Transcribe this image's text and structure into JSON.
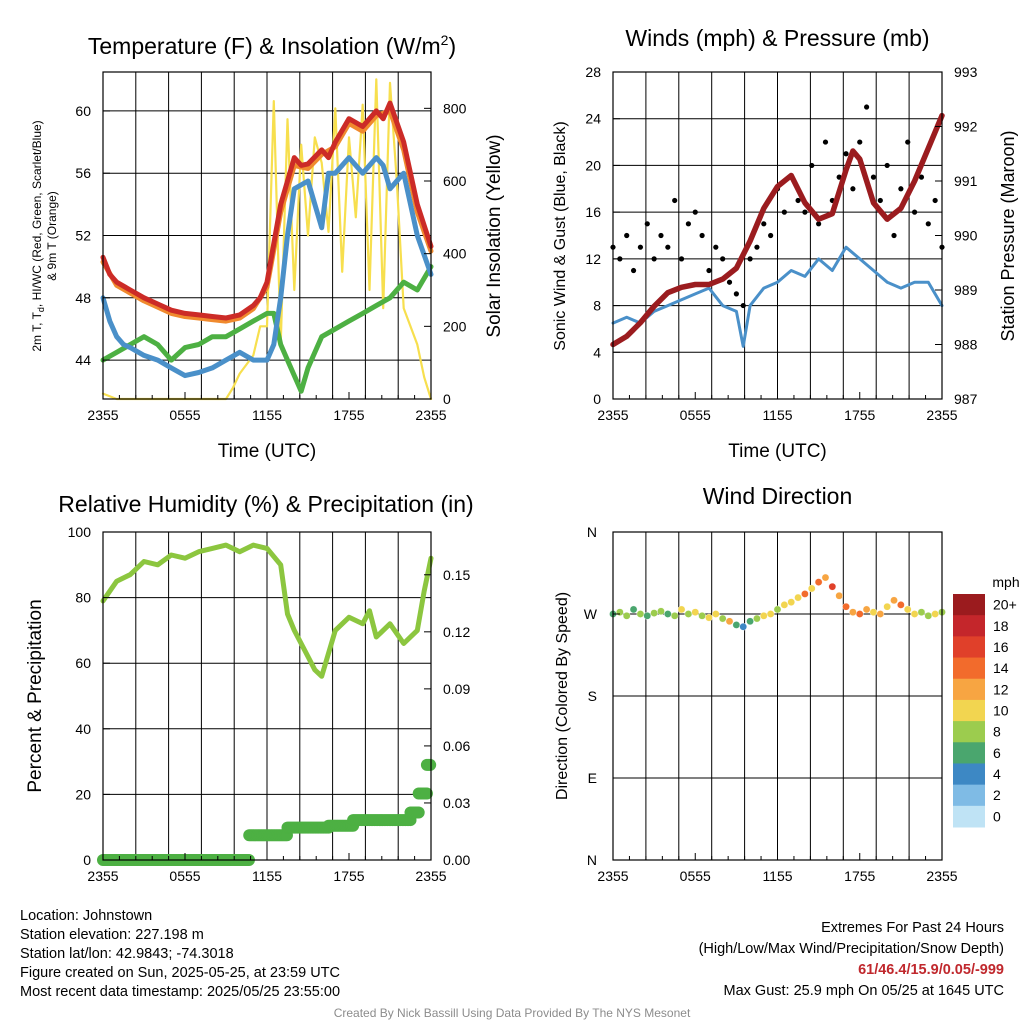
{
  "panels": {
    "temp": {
      "title": "Temperature (F) & Insolation (W/m²)",
      "ylabel_left": "2m T, Td, HI/WC (Red, Green, Scarlet/Blue) & 9m T (Orange)",
      "ylabel_left_line1": "2m T, T",
      "ylabel_left_sub": "d",
      "ylabel_left_line1b": ", HI/WC (Red, Green, Scarlet/Blue)",
      "ylabel_left_line2": "& 9m T (Orange)",
      "ylabel_right": "Solar Insolation (Yellow)",
      "xlabel": "Time (UTC)"
    },
    "winds": {
      "title": "Winds (mph) & Pressure (mb)",
      "ylabel_left": "Sonic Wind & Gust (Blue, Black)",
      "ylabel_right": "Station Pressure (Maroon)",
      "xlabel": "Time (UTC)"
    },
    "rh": {
      "title": "Relative Humidity (%) & Precipitation (in)",
      "ylabel_left": "Percent & Precipitation"
    },
    "wdir": {
      "title": "Wind Direction",
      "ylabel_left": "Direction (Colored By Speed)",
      "colorbar_unit": "mph",
      "colorbar_labels": [
        "20+",
        "18",
        "16",
        "14",
        "12",
        "10",
        "8",
        "6",
        "4",
        "2",
        "0"
      ],
      "colorbar_colors": [
        "#9b1b1e",
        "#c4262b",
        "#e0402a",
        "#f26b2c",
        "#f7a542",
        "#f2d550",
        "#9ccc4e",
        "#4aa66e",
        "#3d88c4",
        "#7fbbe5",
        "#bfe3f5"
      ]
    }
  },
  "footer": {
    "location": "Location: Johnstown",
    "elevation": "Station elevation: 227.198 m",
    "latlon": "Station lat/lon: 42.9843; -74.3018",
    "created": "Figure created on Sun, 2025-05-25, at 23:59 UTC",
    "recent": "Most recent data timestamp: 2025/05/25 23:55:00",
    "extremes_title": "Extremes For Past 24 Hours",
    "extremes_sub": "(High/Low/Max Wind/Precipitation/Snow Depth)",
    "extremes_values": "61/46.4/15.9/0.05/-999",
    "max_gust": "Max Gust: 25.9 mph On 05/25 at 1645 UTC",
    "credit": "Created By Nick Bassill Using Data Provided By The NYS Mesonet"
  },
  "chart_data": [
    {
      "type": "line",
      "title": "Temperature (F) & Insolation (W/m²)",
      "xlabel": "Time (UTC)",
      "ylabel": "2m T, Td, HI/WC (Red, Green, Scarlet/Blue) & 9m T (Orange)",
      "y2label": "Solar Insolation (Yellow)",
      "x_ticks": [
        "2355",
        "0555",
        "1155",
        "1755",
        "2355"
      ],
      "xlim": [
        0,
        24
      ],
      "ylim": [
        41.5,
        62.5
      ],
      "y_ticks": [
        44,
        48,
        52,
        56,
        60
      ],
      "y2lim": [
        0,
        900
      ],
      "y2_ticks": [
        0,
        200,
        400,
        600,
        800
      ],
      "grid": true,
      "series": [
        {
          "color": "#cc2b27",
          "axis": "left",
          "x": [
            0,
            0.5,
            1,
            2,
            3,
            4,
            5,
            6,
            7,
            8,
            9,
            10,
            11,
            11.5,
            12,
            13,
            14,
            14.5,
            15,
            16,
            16.5,
            17,
            18,
            19,
            20,
            20.5,
            21,
            22,
            23,
            24
          ],
          "values": [
            50.6,
            49.5,
            49,
            48.5,
            48,
            47.6,
            47.2,
            47,
            46.9,
            46.8,
            46.7,
            46.9,
            47.5,
            48,
            49,
            54,
            57,
            56.5,
            56.6,
            57.5,
            57,
            58,
            59.5,
            59,
            60,
            59.5,
            60.5,
            58,
            54,
            51.3
          ]
        },
        {
          "color": "#f08a2e",
          "axis": "left",
          "x": [
            0,
            1,
            2,
            3,
            4,
            5,
            6,
            7,
            8,
            9,
            10,
            11,
            12,
            13,
            14,
            15,
            16,
            17,
            18,
            19,
            20,
            21,
            22,
            23,
            24
          ],
          "values": [
            50.3,
            48.8,
            48.3,
            47.8,
            47.4,
            47,
            46.8,
            46.7,
            46.6,
            46.5,
            46.7,
            47.3,
            48.7,
            53.5,
            56.5,
            56.3,
            57.2,
            57.7,
            59.2,
            58.7,
            59.7,
            60,
            57.5,
            53.5,
            51
          ]
        },
        {
          "color": "#4a90c9",
          "axis": "left",
          "x": [
            0,
            0.5,
            1,
            1.5,
            2,
            3,
            4,
            5,
            6,
            7,
            8,
            9,
            10,
            11,
            12,
            12.5,
            13,
            13.5,
            14,
            15,
            16,
            16.5,
            17,
            18,
            19,
            20,
            20.5,
            21,
            22,
            23,
            24
          ],
          "values": [
            48,
            46.5,
            45.5,
            45,
            44.8,
            44.3,
            44,
            43.5,
            43,
            43.2,
            43.5,
            44,
            44.5,
            44,
            44,
            45,
            48,
            52,
            55,
            55.5,
            52.5,
            56,
            56,
            57,
            56,
            57,
            56.5,
            55,
            56,
            52,
            49.5
          ]
        },
        {
          "color": "#4db043",
          "axis": "left",
          "x": [
            0,
            1,
            2,
            3,
            4,
            5,
            6,
            7,
            8,
            9,
            10,
            11,
            12,
            12.5,
            13,
            13.5,
            14,
            14.5,
            15,
            16,
            17,
            18,
            19,
            20,
            21,
            22,
            23,
            24
          ],
          "values": [
            44,
            44.5,
            45,
            45.5,
            45,
            44,
            44.8,
            45,
            45.5,
            45.5,
            46,
            46.5,
            47,
            47,
            45,
            44,
            43,
            42,
            43.5,
            45.5,
            46,
            46.5,
            47,
            47.5,
            48,
            49,
            48.5,
            50
          ]
        },
        {
          "color": "#f7df4e",
          "axis": "right",
          "x": [
            0,
            1,
            2,
            3,
            4,
            5,
            6,
            7,
            8,
            9,
            9.5,
            10,
            11,
            11.5,
            12,
            12.5,
            13,
            13.5,
            14,
            14.5,
            15,
            15.5,
            16,
            16.5,
            17,
            17.5,
            18,
            18.5,
            19,
            19.5,
            20,
            20.5,
            21,
            21.5,
            22,
            23,
            23.5,
            24
          ],
          "values": [
            15,
            0,
            0,
            0,
            0,
            0,
            0,
            0,
            0,
            0,
            30,
            70,
            120,
            200,
            200,
            820,
            150,
            770,
            300,
            700,
            450,
            720,
            650,
            460,
            800,
            350,
            720,
            500,
            810,
            300,
            880,
            250,
            870,
            600,
            250,
            150,
            60,
            0
          ]
        }
      ]
    },
    {
      "type": "scatter",
      "title": "Winds (mph) & Pressure (mb)",
      "xlabel": "Time (UTC)",
      "ylabel": "Sonic Wind & Gust (Blue, Black)",
      "y2label": "Station Pressure (Maroon)",
      "x_ticks": [
        "2355",
        "0555",
        "1155",
        "1755",
        "2355"
      ],
      "xlim": [
        0,
        24
      ],
      "ylim": [
        0,
        28
      ],
      "y_ticks": [
        0,
        4,
        8,
        12,
        16,
        20,
        24,
        28
      ],
      "y2lim": [
        987,
        993
      ],
      "y2_ticks": [
        987,
        988,
        989,
        990,
        991,
        992,
        993
      ],
      "grid": true,
      "series": [
        {
          "name": "",
          "color": "#4a90c9",
          "style": "line",
          "axis": "left",
          "x": [
            0,
            1,
            2,
            3,
            4,
            5,
            6,
            7,
            8,
            9,
            9.5,
            10,
            11,
            12,
            13,
            14,
            15,
            16,
            17,
            18,
            19,
            20,
            21,
            22,
            23,
            24
          ],
          "values": [
            6.5,
            7,
            6.5,
            7.5,
            8,
            8.5,
            9,
            9.5,
            8,
            7.5,
            4.5,
            8,
            9.5,
            10,
            11,
            10.5,
            12,
            11,
            13,
            12,
            11,
            10,
            9.5,
            10,
            10,
            8
          ]
        },
        {
          "name": "",
          "color": "#000000",
          "style": "points",
          "axis": "left",
          "x": [
            0,
            0.5,
            1,
            1.5,
            2,
            2.5,
            3,
            3.5,
            4,
            4.5,
            5,
            5.5,
            6,
            6.5,
            7,
            7.5,
            8,
            8.5,
            9,
            9.5,
            10,
            10.5,
            11,
            11.5,
            12,
            12.5,
            13,
            13.5,
            14,
            14.5,
            15,
            15.5,
            16,
            16.5,
            17,
            17.5,
            18,
            18.5,
            19,
            19.5,
            20,
            20.5,
            21,
            21.5,
            22,
            22.5,
            23,
            23.5,
            24
          ],
          "values": [
            13,
            12,
            14,
            11,
            13,
            15,
            12,
            14,
            13,
            17,
            12,
            15,
            16,
            14,
            11,
            13,
            12,
            10,
            9,
            8,
            12,
            13,
            15,
            14,
            18,
            16,
            19,
            17,
            16,
            20,
            15,
            22,
            17,
            19,
            21,
            18,
            22,
            25,
            19,
            17,
            20,
            14,
            18,
            22,
            16,
            19,
            15,
            17,
            13
          ]
        },
        {
          "name": "",
          "color": "#9b1c1f",
          "style": "line",
          "axis": "right",
          "x": [
            0,
            1,
            2,
            3,
            4,
            5,
            6,
            7,
            8,
            9,
            10,
            11,
            12,
            13,
            14,
            15,
            16,
            17,
            17.5,
            18,
            19,
            20,
            21,
            22,
            23,
            24
          ],
          "values": [
            988,
            988.15,
            988.4,
            988.7,
            988.95,
            989.05,
            989.1,
            989.1,
            989.2,
            989.4,
            989.9,
            990.5,
            990.9,
            991.1,
            990.6,
            990.3,
            990.4,
            991.2,
            991.55,
            991.4,
            990.6,
            990.3,
            990.5,
            991,
            991.6,
            992.2
          ]
        }
      ]
    },
    {
      "type": "line",
      "title": "Relative Humidity (%) & Precipitation (in)",
      "xlabel": "",
      "ylabel": "Percent & Precipitation",
      "x_ticks": [
        "2355",
        "0555",
        "1155",
        "1755",
        "2355"
      ],
      "xlim": [
        0,
        24
      ],
      "ylim": [
        0,
        100
      ],
      "y_ticks": [
        0,
        20,
        40,
        60,
        80,
        100
      ],
      "y2lim": [
        0,
        0.1725
      ],
      "y2_ticks": [
        "0.00",
        "0.03",
        "0.06",
        "0.09",
        "0.12",
        "0.15"
      ],
      "grid": true,
      "series": [
        {
          "color": "#8cc63f",
          "axis": "left",
          "x": [
            0,
            1,
            2,
            3,
            4,
            5,
            6,
            7,
            8,
            9,
            10,
            11,
            12,
            13,
            13.5,
            14,
            15,
            15.5,
            16,
            17,
            17.5,
            18,
            19,
            19.5,
            20,
            21,
            22,
            23,
            23.5,
            24
          ],
          "values": [
            79,
            85,
            87,
            91,
            90,
            93,
            92,
            94,
            95,
            96,
            94,
            96,
            95,
            90,
            75,
            70,
            62,
            58,
            56,
            70,
            72,
            74,
            72,
            76,
            68,
            72,
            66,
            70,
            82,
            92
          ]
        },
        {
          "color": "#4db043",
          "axis": "right",
          "style": "step",
          "x": [
            0,
            10.7,
            10.7,
            13.5,
            13.5,
            16.5,
            16.5,
            18.3,
            18.3,
            22.5,
            22.5,
            23.1,
            23.1,
            23.7,
            23.7,
            24
          ],
          "values": [
            0,
            0,
            0.013,
            0.013,
            0.017,
            0.017,
            0.018,
            0.018,
            0.021,
            0.021,
            0.025,
            0.025,
            0.035,
            0.035,
            0.05,
            0.05
          ]
        }
      ]
    },
    {
      "type": "scatter",
      "title": "Wind Direction",
      "xlabel": "",
      "ylabel": "Direction (Colored By Speed)",
      "x_ticks": [
        "2355",
        "0555",
        "1155",
        "1755",
        "2355"
      ],
      "xlim": [
        0,
        24
      ],
      "y_ticks": [
        "N",
        "E",
        "S",
        "W",
        "N"
      ],
      "y_tick_values": [
        0,
        90,
        180,
        270,
        360
      ],
      "ylim": [
        0,
        360
      ],
      "grid": true,
      "colorbar": {
        "unit": "mph",
        "min": 0,
        "max": 20
      },
      "points": {
        "x": [
          0,
          0.5,
          1,
          1.5,
          2,
          2.5,
          3,
          3.5,
          4,
          4.5,
          5,
          5.5,
          6,
          6.5,
          7,
          7.5,
          8,
          8.5,
          9,
          9.5,
          10,
          10.5,
          11,
          11.5,
          12,
          12.5,
          13,
          13.5,
          14,
          14.5,
          15,
          15.5,
          16,
          16.5,
          17,
          17.5,
          18,
          18.5,
          19,
          19.5,
          20,
          20.5,
          21,
          21.5,
          22,
          22.5,
          23,
          23.5,
          24
        ],
        "direction": [
          270,
          272,
          268,
          275,
          270,
          268,
          271,
          273,
          270,
          268,
          275,
          270,
          272,
          268,
          266,
          270,
          265,
          262,
          258,
          256,
          262,
          265,
          268,
          270,
          275,
          280,
          283,
          288,
          292,
          298,
          305,
          310,
          300,
          290,
          278,
          272,
          270,
          275,
          272,
          270,
          278,
          285,
          280,
          275,
          270,
          272,
          268,
          270,
          272
        ],
        "speed": [
          6,
          7,
          8,
          6,
          7,
          6,
          8,
          7,
          6,
          8,
          9,
          7,
          10,
          8,
          9,
          10,
          8,
          11,
          5,
          4,
          6,
          7,
          9,
          10,
          8,
          9,
          10,
          9,
          13,
          10,
          14,
          12,
          15,
          11,
          14,
          12,
          13,
          11,
          10,
          12,
          9,
          11,
          13,
          10,
          9,
          8,
          8,
          10,
          7
        ]
      }
    }
  ]
}
